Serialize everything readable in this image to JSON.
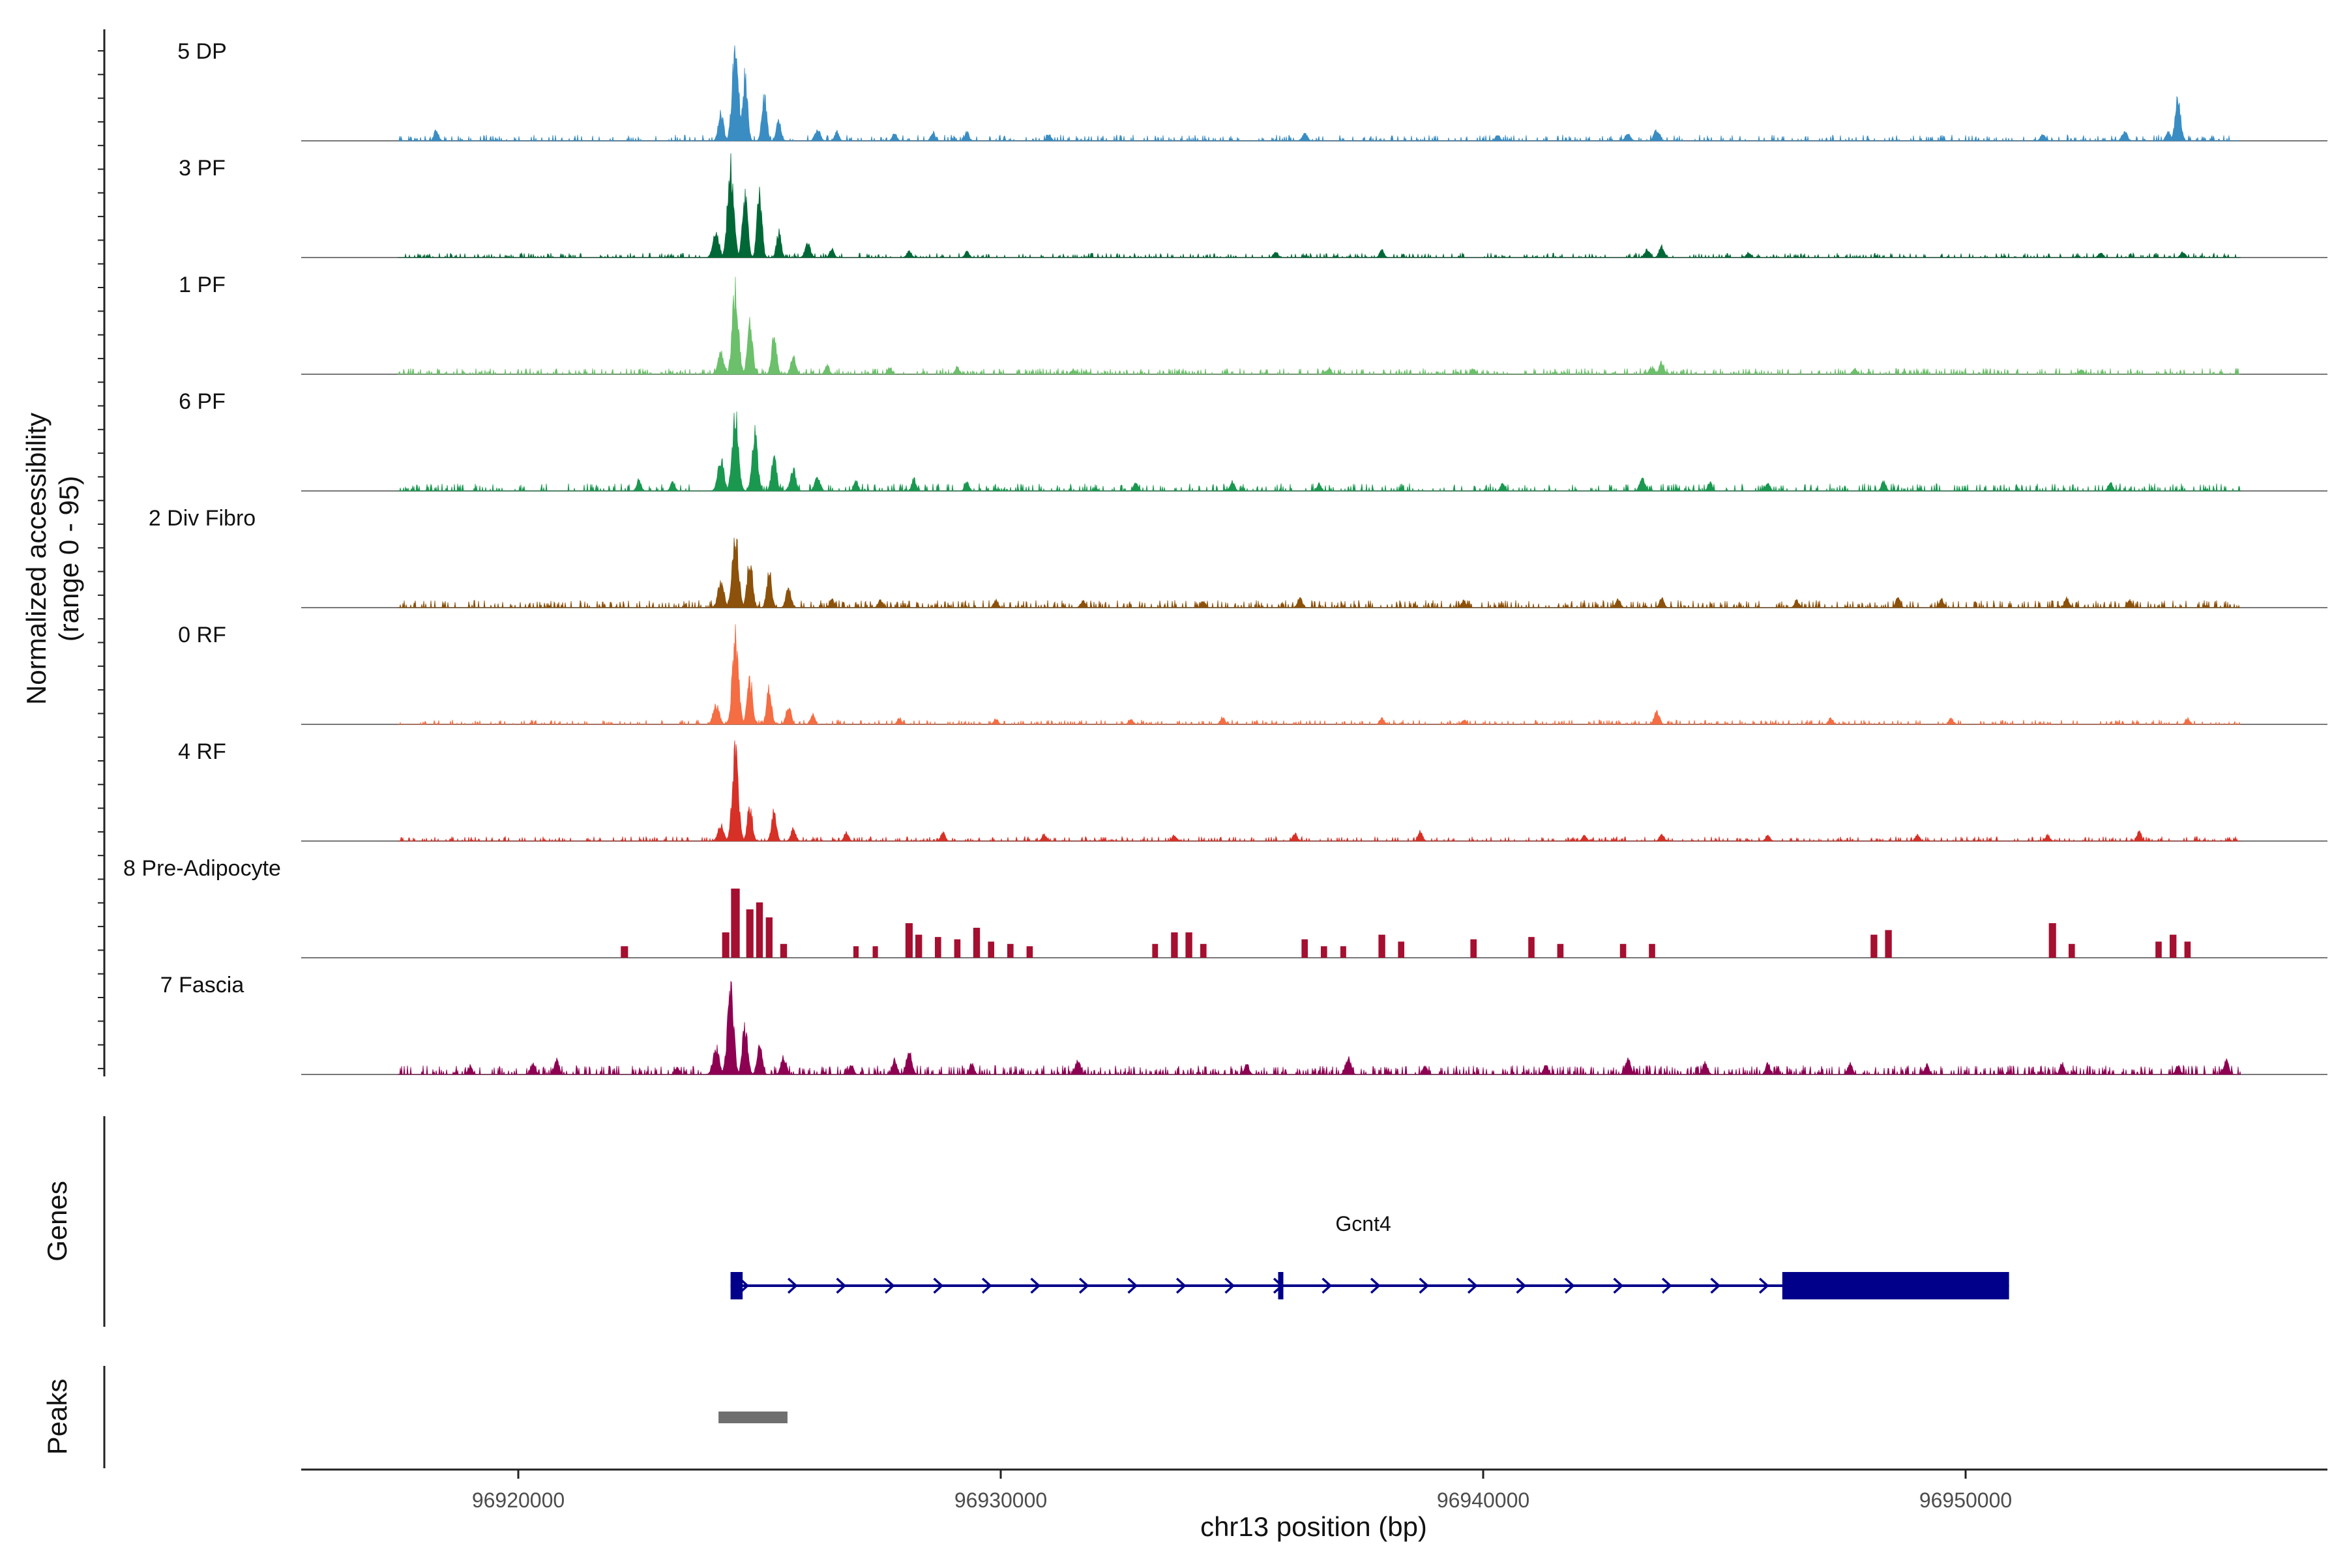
{
  "chart_data": {
    "type": "area",
    "title": "",
    "chromosome": "chr13",
    "xlabel": "chr13 position (bp)",
    "ylabel_line1": "Normalized accessibility",
    "ylabel_line2": "(range 0 - 95)",
    "xlim": [
      96915500,
      96957500
    ],
    "ylim": [
      0,
      95
    ],
    "x_ticks": [
      96920000,
      96930000,
      96940000,
      96950000
    ],
    "x_tick_labels": [
      "96920000",
      "96930000",
      "96940000",
      "96950000"
    ],
    "data_start": 96917500,
    "data_end": 96955700,
    "tracks": [
      {
        "name": "5 DP",
        "color": "#3a8dc3",
        "style": "smooth",
        "seed": 11,
        "base": 4,
        "density": 0.55,
        "peaks": [
          [
            96918300,
            9,
            100
          ],
          [
            96924500,
            78,
            140
          ],
          [
            96924700,
            52,
            110
          ],
          [
            96924200,
            22,
            120
          ],
          [
            96925100,
            35,
            110
          ],
          [
            96925400,
            18,
            100
          ],
          [
            96926200,
            10,
            120
          ],
          [
            96926600,
            8,
            100
          ],
          [
            96927800,
            6,
            100
          ],
          [
            96928600,
            7,
            100
          ],
          [
            96929300,
            7,
            100
          ],
          [
            96931000,
            5,
            100
          ],
          [
            96936300,
            6,
            120
          ],
          [
            96940300,
            5,
            100
          ],
          [
            96943000,
            6,
            120
          ],
          [
            96943600,
            9,
            130
          ],
          [
            96951600,
            6,
            100
          ],
          [
            96953300,
            7,
            120
          ],
          [
            96954400,
            34,
            120
          ],
          [
            96954200,
            8,
            100
          ]
        ]
      },
      {
        "name": "3 PF",
        "color": "#006837",
        "style": "smooth",
        "seed": 23,
        "base": 3,
        "density": 0.5,
        "peaks": [
          [
            96924400,
            75,
            140
          ],
          [
            96924700,
            50,
            120
          ],
          [
            96924100,
            20,
            140
          ],
          [
            96925000,
            52,
            110
          ],
          [
            96925400,
            22,
            100
          ],
          [
            96926000,
            12,
            120
          ],
          [
            96926500,
            7,
            100
          ],
          [
            96928100,
            6,
            100
          ],
          [
            96929300,
            5,
            100
          ],
          [
            96935700,
            5,
            100
          ],
          [
            96937900,
            6,
            100
          ],
          [
            96943400,
            7,
            120
          ],
          [
            96943700,
            9,
            120
          ],
          [
            96945500,
            4,
            100
          ],
          [
            96952800,
            4,
            100
          ],
          [
            96954500,
            5,
            100
          ]
        ]
      },
      {
        "name": "1 PF",
        "color": "#6cc06b",
        "style": "smooth",
        "seed": 37,
        "base": 4,
        "density": 0.6,
        "peaks": [
          [
            96924500,
            68,
            140
          ],
          [
            96924800,
            40,
            120
          ],
          [
            96924200,
            18,
            140
          ],
          [
            96925300,
            32,
            110
          ],
          [
            96925700,
            14,
            110
          ],
          [
            96926400,
            8,
            100
          ],
          [
            96927700,
            6,
            100
          ],
          [
            96929100,
            6,
            100
          ],
          [
            96931500,
            4,
            100
          ],
          [
            96936800,
            5,
            100
          ],
          [
            96939800,
            5,
            100
          ],
          [
            96943500,
            6,
            120
          ],
          [
            96943700,
            10,
            110
          ],
          [
            96947700,
            5,
            100
          ],
          [
            96952400,
            4,
            100
          ]
        ]
      },
      {
        "name": "6 PF",
        "color": "#1a9850",
        "style": "smooth",
        "seed": 49,
        "base": 5,
        "density": 0.65,
        "peaks": [
          [
            96924500,
            62,
            140
          ],
          [
            96924900,
            46,
            130
          ],
          [
            96924200,
            25,
            140
          ],
          [
            96925300,
            30,
            110
          ],
          [
            96925700,
            18,
            120
          ],
          [
            96926200,
            12,
            120
          ],
          [
            96922500,
            10,
            100
          ],
          [
            96923200,
            8,
            100
          ],
          [
            96927000,
            8,
            100
          ],
          [
            96928200,
            10,
            100
          ],
          [
            96929300,
            7,
            100
          ],
          [
            96932800,
            7,
            100
          ],
          [
            96934800,
            8,
            100
          ],
          [
            96936600,
            6,
            100
          ],
          [
            96940400,
            6,
            100
          ],
          [
            96943300,
            10,
            120
          ],
          [
            96944700,
            7,
            100
          ],
          [
            96945900,
            6,
            100
          ],
          [
            96948300,
            8,
            100
          ],
          [
            96953000,
            7,
            100
          ]
        ]
      },
      {
        "name": "2 Div Fibro",
        "color": "#8c510a",
        "style": "smooth",
        "seed": 61,
        "base": 5,
        "density": 0.7,
        "peaks": [
          [
            96924500,
            60,
            140
          ],
          [
            96924800,
            40,
            120
          ],
          [
            96924200,
            20,
            140
          ],
          [
            96925200,
            30,
            110
          ],
          [
            96925600,
            15,
            120
          ],
          [
            96926500,
            7,
            100
          ],
          [
            96927500,
            6,
            100
          ],
          [
            96929900,
            6,
            100
          ],
          [
            96931700,
            6,
            100
          ],
          [
            96934200,
            5,
            100
          ],
          [
            96936200,
            8,
            110
          ],
          [
            96939600,
            6,
            100
          ],
          [
            96942800,
            7,
            100
          ],
          [
            96943700,
            8,
            100
          ],
          [
            96946500,
            6,
            100
          ],
          [
            96948600,
            9,
            100
          ],
          [
            96949500,
            7,
            100
          ],
          [
            96952100,
            8,
            100
          ],
          [
            96953400,
            6,
            100
          ]
        ]
      },
      {
        "name": "0 RF",
        "color": "#f46d43",
        "style": "smooth",
        "seed": 73,
        "base": 3,
        "density": 0.5,
        "peaks": [
          [
            96924500,
            70,
            140
          ],
          [
            96924800,
            38,
            120
          ],
          [
            96924100,
            16,
            140
          ],
          [
            96925200,
            30,
            110
          ],
          [
            96925600,
            16,
            110
          ],
          [
            96926100,
            8,
            100
          ],
          [
            96927900,
            5,
            100
          ],
          [
            96929900,
            5,
            100
          ],
          [
            96932700,
            4,
            100
          ],
          [
            96934600,
            6,
            100
          ],
          [
            96937900,
            5,
            100
          ],
          [
            96939600,
            4,
            100
          ],
          [
            96943600,
            10,
            120
          ],
          [
            96947200,
            5,
            100
          ],
          [
            96949700,
            5,
            100
          ],
          [
            96954600,
            5,
            100
          ]
        ]
      },
      {
        "name": "4 RF",
        "color": "#d73027",
        "style": "smooth",
        "seed": 89,
        "base": 3,
        "density": 0.55,
        "peaks": [
          [
            96924500,
            72,
            140
          ],
          [
            96924800,
            30,
            110
          ],
          [
            96924200,
            14,
            130
          ],
          [
            96925300,
            24,
            110
          ],
          [
            96925700,
            10,
            110
          ],
          [
            96926800,
            7,
            100
          ],
          [
            96928800,
            7,
            100
          ],
          [
            96930900,
            6,
            100
          ],
          [
            96933600,
            5,
            100
          ],
          [
            96936100,
            6,
            100
          ],
          [
            96938700,
            8,
            100
          ],
          [
            96942100,
            5,
            100
          ],
          [
            96943700,
            6,
            100
          ],
          [
            96945900,
            5,
            100
          ],
          [
            96949000,
            5,
            100
          ],
          [
            96951700,
            5,
            100
          ],
          [
            96953600,
            8,
            100
          ]
        ]
      },
      {
        "name": "8 Pre-Adipocyte",
        "color": "#a50f30",
        "style": "bars",
        "seed": 97,
        "peaks": [
          [
            96922200,
            10,
            150
          ],
          [
            96924500,
            60,
            180
          ],
          [
            96924800,
            42,
            150
          ],
          [
            96924300,
            22,
            150
          ],
          [
            96925000,
            48,
            140
          ],
          [
            96925200,
            35,
            140
          ],
          [
            96925500,
            12,
            140
          ],
          [
            96927000,
            10,
            110
          ],
          [
            96927400,
            10,
            110
          ],
          [
            96928100,
            30,
            150
          ],
          [
            96928300,
            20,
            140
          ],
          [
            96928700,
            18,
            130
          ],
          [
            96929100,
            16,
            130
          ],
          [
            96929500,
            26,
            140
          ],
          [
            96929800,
            14,
            130
          ],
          [
            96930200,
            12,
            130
          ],
          [
            96930600,
            10,
            130
          ],
          [
            96933200,
            12,
            120
          ],
          [
            96933600,
            22,
            140
          ],
          [
            96933900,
            22,
            140
          ],
          [
            96934200,
            12,
            130
          ],
          [
            96936300,
            16,
            130
          ],
          [
            96936700,
            10,
            130
          ],
          [
            96937100,
            10,
            120
          ],
          [
            96937900,
            20,
            140
          ],
          [
            96938300,
            14,
            130
          ],
          [
            96939800,
            16,
            130
          ],
          [
            96941000,
            18,
            130
          ],
          [
            96941600,
            12,
            130
          ],
          [
            96942900,
            12,
            130
          ],
          [
            96943500,
            12,
            130
          ],
          [
            96948100,
            20,
            140
          ],
          [
            96948400,
            24,
            140
          ],
          [
            96951800,
            30,
            150
          ],
          [
            96952200,
            12,
            130
          ],
          [
            96954000,
            14,
            130
          ],
          [
            96954300,
            20,
            140
          ],
          [
            96954600,
            14,
            130
          ]
        ]
      },
      {
        "name": "7 Fascia",
        "color": "#8e0152",
        "style": "smooth",
        "seed": 103,
        "base": 6,
        "density": 0.75,
        "peaks": [
          [
            96924400,
            68,
            140
          ],
          [
            96924700,
            40,
            120
          ],
          [
            96924100,
            22,
            140
          ],
          [
            96925000,
            25,
            110
          ],
          [
            96925500,
            14,
            120
          ],
          [
            96919000,
            7,
            100
          ],
          [
            96920300,
            9,
            100
          ],
          [
            96920800,
            12,
            100
          ],
          [
            96923300,
            6,
            100
          ],
          [
            96926900,
            8,
            100
          ],
          [
            96927800,
            12,
            110
          ],
          [
            96928100,
            20,
            120
          ],
          [
            96929400,
            9,
            100
          ],
          [
            96931600,
            12,
            110
          ],
          [
            96935100,
            9,
            100
          ],
          [
            96937200,
            14,
            120
          ],
          [
            96938800,
            7,
            100
          ],
          [
            96941300,
            8,
            100
          ],
          [
            96943000,
            13,
            120
          ],
          [
            96944600,
            10,
            110
          ],
          [
            96945900,
            9,
            100
          ],
          [
            96947600,
            10,
            100
          ],
          [
            96949200,
            8,
            100
          ],
          [
            96952000,
            9,
            100
          ],
          [
            96954400,
            8,
            100
          ],
          [
            96955400,
            12,
            110
          ]
        ]
      }
    ],
    "genes_track_label": "Genes",
    "gene": {
      "name": "Gcnt4",
      "strand": "+",
      "start": 96924400,
      "end": 96950900,
      "exons": [
        [
          96924400,
          96924650
        ],
        [
          96935750,
          96935850
        ]
      ],
      "utr": [
        96946200,
        96950900
      ]
    },
    "peaks_track_label": "Peaks",
    "peak_regions": [
      [
        96924150,
        96925580
      ]
    ]
  }
}
